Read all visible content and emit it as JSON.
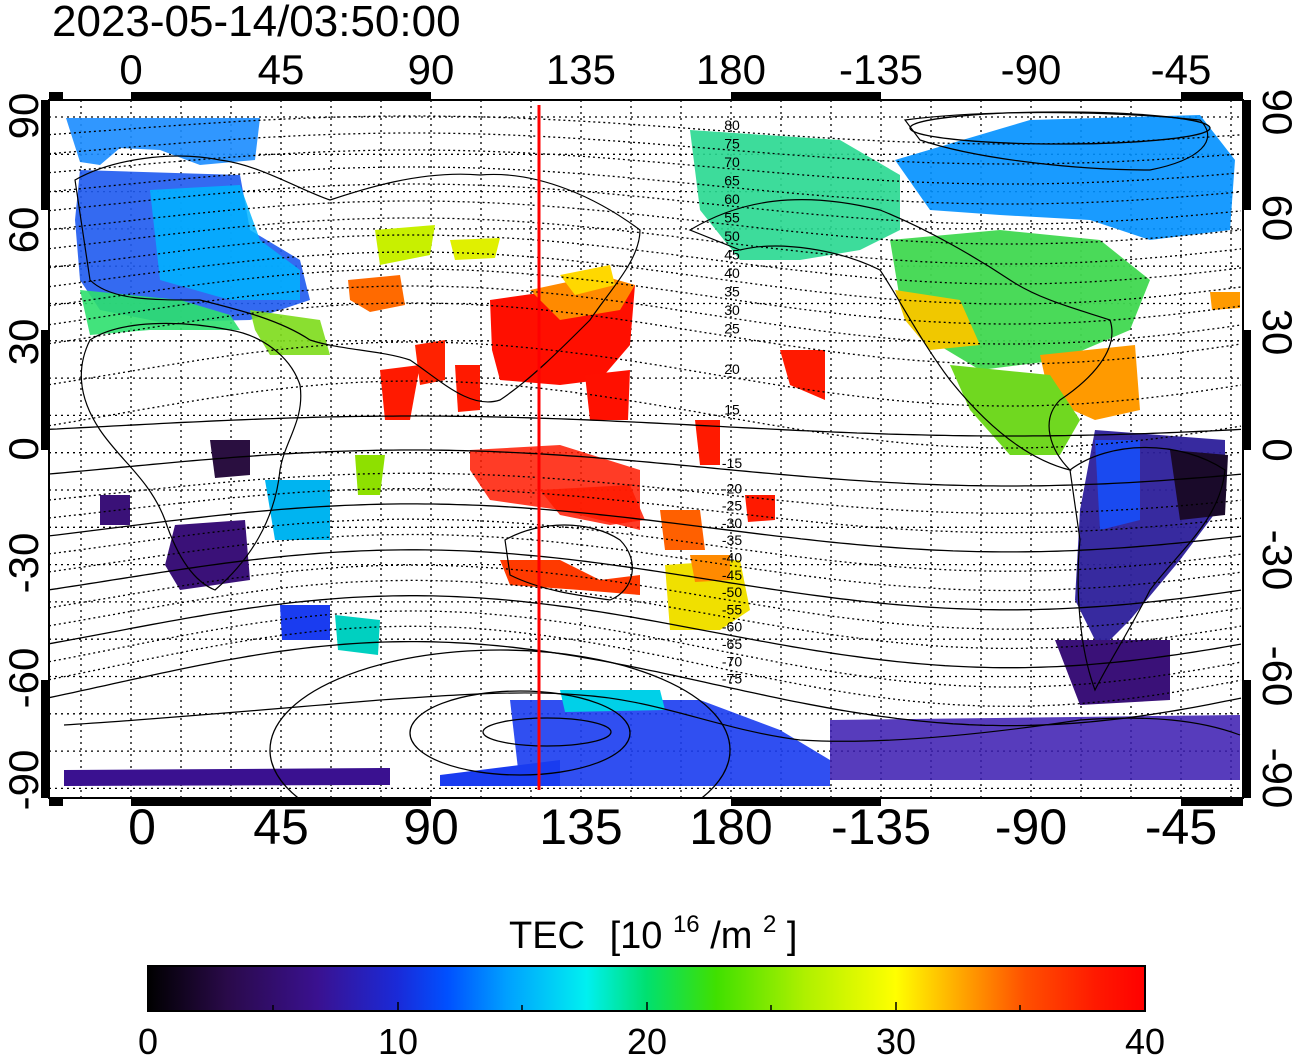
{
  "timestamp": "2023-05-14/03:50:00",
  "axes": {
    "top_lon_labels": [
      "0",
      "45",
      "90",
      "135",
      "180",
      "-135",
      "-90",
      "-45"
    ],
    "bottom_lon_labels": [
      "0",
      "45",
      "90",
      "135",
      "180",
      "-135",
      "-90",
      "-45"
    ],
    "left_lat_labels": [
      "90",
      "60",
      "30",
      "0",
      "-30",
      "-60",
      "-90"
    ],
    "right_lat_labels": [
      "90",
      "60",
      "30",
      "0",
      "-30",
      "-60",
      "-90"
    ]
  },
  "magnetic_latitude_labels": [
    "80",
    "75",
    "70",
    "65",
    "60",
    "55",
    "50",
    "45",
    "40",
    "35",
    "30",
    "25",
    "20",
    "15",
    "-15",
    "-20",
    "-25",
    "-30",
    "-35",
    "-40",
    "-45",
    "-50",
    "-55",
    "-60",
    "-65",
    "-70",
    "-75"
  ],
  "meridian_marker": {
    "longitude": 122,
    "color": "#ff0000"
  },
  "colorbar": {
    "title": "TEC",
    "unit_base": "[10",
    "unit_exp": "16",
    "unit_mid": "/m",
    "unit_exp2": "2",
    "unit_end": "]",
    "tick_labels": [
      "0",
      "10",
      "20",
      "30",
      "40"
    ],
    "min": 0,
    "max": 40,
    "colormap": [
      "#000000",
      "#2a0a4a",
      "#3a1190",
      "#1a2ad8",
      "#0050ff",
      "#00a0ff",
      "#00f0f0",
      "#00e070",
      "#40e000",
      "#b0f000",
      "#ffff00",
      "#ffa000",
      "#ff5000",
      "#ff1a00",
      "#ff0000"
    ]
  }
}
